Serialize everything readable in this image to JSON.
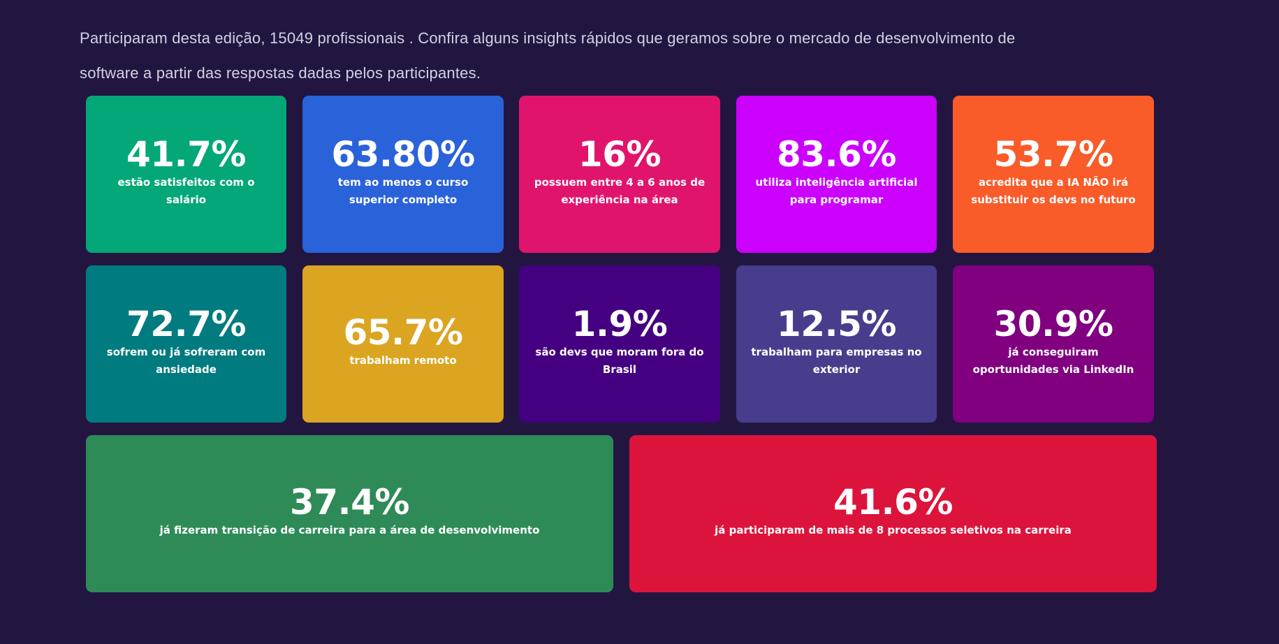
{
  "intro": {
    "line1": "Participaram desta edição, 15049 profissionais . Confira alguns insights rápidos que geramos sobre o mercado de desenvolvimento de",
    "line2": "software a partir das respostas dadas pelos participantes."
  },
  "cards": [
    {
      "value": "41.7%",
      "description": "estão satisfeitos com o salário",
      "color": "#04A777"
    },
    {
      "value": "63.80%",
      "description": "tem ao menos o curso superior completo",
      "color": "#2A62DA"
    },
    {
      "value": "16%",
      "description": "possuem entre 4 a 6 anos de experiência na área",
      "color": "#E1146D"
    },
    {
      "value": "83.6%",
      "description": "utiliza inteligência artificial para programar",
      "color": "#CB00FD"
    },
    {
      "value": "53.7%",
      "description": "acredita que a IA NÃO irá substituir os devs no futuro",
      "color": "#F95B29"
    },
    {
      "value": "72.7%",
      "description": "sofrem ou já sofreram com ansiedade",
      "color": "#007B7F"
    },
    {
      "value": "65.7%",
      "description": "trabalham remoto",
      "color": "#DBA522"
    },
    {
      "value": "1.9%",
      "description": "são devs que moram fora do Brasil",
      "color": "#450081"
    },
    {
      "value": "12.5%",
      "description": "trabalham para empresas no exterior",
      "color": "#483D8C"
    },
    {
      "value": "30.9%",
      "description": "já conseguiram oportunidades via LinkedIn",
      "color": "#800080"
    },
    {
      "value": "37.4%",
      "description": "já fizeram transição de carreira para a área de desenvolvimento",
      "color": "#2E8B57"
    },
    {
      "value": "41.6%",
      "description": "já participaram de mais de 8 processos seletivos na carreira",
      "color": "#DC143C"
    }
  ]
}
